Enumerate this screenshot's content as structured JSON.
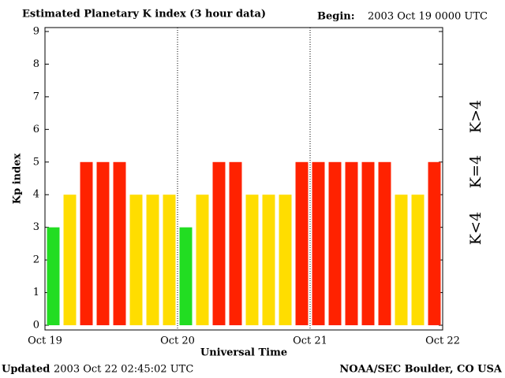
{
  "chart_data": {
    "type": "bar",
    "title": "Estimated Planetary K index (3 hour data)",
    "begin_label": "Begin:",
    "begin_value": "2003 Oct 19 0000 UTC",
    "xlabel": "Universal Time",
    "ylabel": "Kp index",
    "categories": [
      null,
      null,
      null,
      null,
      null,
      null,
      null,
      null,
      null,
      null,
      null,
      null,
      null,
      null,
      null,
      null,
      null,
      null,
      null,
      null,
      null,
      null,
      null,
      null
    ],
    "values": [
      3,
      4,
      5,
      5,
      5,
      4,
      4,
      4,
      3,
      4,
      5,
      5,
      4,
      4,
      4,
      5,
      5,
      5,
      5,
      5,
      5,
      4,
      4,
      5
    ],
    "xlim": [
      0,
      3
    ],
    "xticks": [
      {
        "value": 0,
        "label": "Oct 19"
      },
      {
        "value": 1,
        "label": "Oct 20"
      },
      {
        "value": 2,
        "label": "Oct 21"
      },
      {
        "value": 3,
        "label": "Oct 22"
      }
    ],
    "ylim": [
      0,
      9
    ],
    "yticks": [
      0,
      1,
      2,
      3,
      4,
      5,
      6,
      7,
      8,
      9
    ],
    "legend": [
      {
        "label": "K<4",
        "color": "#22dd22"
      },
      {
        "label": "K=4",
        "color": "#ffdd00"
      },
      {
        "label": "K>4",
        "color": "#ff2200"
      }
    ]
  },
  "footer": {
    "updated_label": "Updated",
    "updated_value": "2003 Oct 22 02:45:02 UTC",
    "source": "NOAA/SEC Boulder, CO USA"
  }
}
